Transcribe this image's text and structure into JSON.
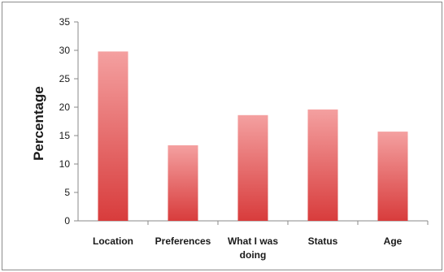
{
  "chart_data": {
    "type": "bar",
    "categories": [
      "Location",
      "Preferences",
      "What I was doing",
      "Status",
      "Age"
    ],
    "category_lines": [
      [
        "Location"
      ],
      [
        "Preferences"
      ],
      [
        "What I was",
        "doing"
      ],
      [
        "Status"
      ],
      [
        "Age"
      ]
    ],
    "values": [
      29.8,
      13.3,
      18.6,
      19.6,
      15.7
    ],
    "title": "",
    "xlabel": "",
    "ylabel": "Percentage",
    "ylim": [
      0,
      35
    ],
    "yticks": [
      0,
      5,
      10,
      15,
      20,
      25,
      30,
      35
    ],
    "grid": false,
    "legend": "none",
    "bar_color_top": "#f4a0a0",
    "bar_color_bottom": "#d83c3c"
  }
}
